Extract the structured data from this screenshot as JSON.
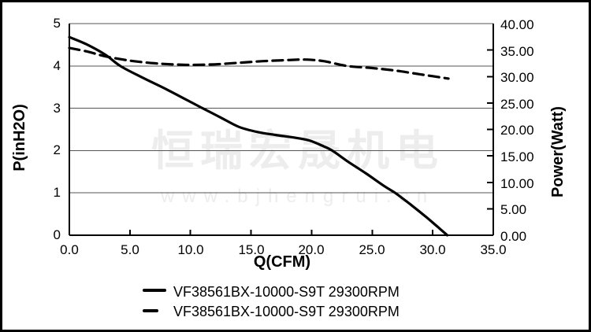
{
  "watermark": {
    "brand": "恒瑞宏晟机电",
    "url": "www.bjhengrui.cn"
  },
  "legend": [
    {
      "marker": "solid-line",
      "label": "VF38561BX-10000-S9T 29300RPM"
    },
    {
      "marker": "dashed-line",
      "label": "VF38561BX-10000-S9T 29300RPM"
    }
  ],
  "chart_data": {
    "type": "line",
    "title": "",
    "xlabel": "Q(CFM)",
    "ylabel_left": "P(inH2O)",
    "ylabel_right": "Power(Watt)",
    "grid": "horizontal-only",
    "legend_position": "bottom",
    "x_axis": {
      "min": 0,
      "max": 35,
      "ticks": [
        "0.0",
        "5.0",
        "10.0",
        "15.0",
        "20.0",
        "25.0",
        "30.0",
        "35.0"
      ]
    },
    "left_axis": {
      "min": 0,
      "max": 5,
      "ticks": [
        "5",
        "4",
        "3",
        "2",
        "1",
        "0"
      ]
    },
    "right_axis": {
      "min": 0,
      "max": 40,
      "ticks": [
        "40.00",
        "35.00",
        "30.00",
        "25.00",
        "20.00",
        "15.00",
        "10.00",
        "5.00",
        "0.00"
      ]
    },
    "series": [
      {
        "name": "VF38561BX-10000-S9T 29300RPM",
        "style": "solid",
        "axis": "left",
        "unit": "inH2O",
        "points": [
          [
            0,
            4.68
          ],
          [
            1.5,
            4.5
          ],
          [
            3,
            4.26
          ],
          [
            4.2,
            4.0
          ],
          [
            6,
            3.73
          ],
          [
            8,
            3.45
          ],
          [
            10,
            3.15
          ],
          [
            11,
            3.0
          ],
          [
            12.5,
            2.78
          ],
          [
            14,
            2.56
          ],
          [
            15.5,
            2.44
          ],
          [
            17,
            2.37
          ],
          [
            18.5,
            2.31
          ],
          [
            19.8,
            2.24
          ],
          [
            21,
            2.1
          ],
          [
            21.7,
            2.0
          ],
          [
            23,
            1.74
          ],
          [
            24.5,
            1.46
          ],
          [
            26,
            1.16
          ],
          [
            26.9,
            1.0
          ],
          [
            28.2,
            0.72
          ],
          [
            29.5,
            0.42
          ],
          [
            30.4,
            0.2
          ],
          [
            31.2,
            0
          ]
        ]
      },
      {
        "name": "VF38561BX-10000-S9T 29300RPM",
        "style": "dashed",
        "axis": "right",
        "unit": "Watt",
        "points": [
          [
            0,
            35.4
          ],
          [
            1.5,
            34.7
          ],
          [
            3,
            33.8
          ],
          [
            5,
            33.0
          ],
          [
            7,
            32.5
          ],
          [
            8.5,
            32.3
          ],
          [
            10,
            32.2
          ],
          [
            12,
            32.3
          ],
          [
            14,
            32.6
          ],
          [
            16,
            32.9
          ],
          [
            18,
            33.1
          ],
          [
            19.5,
            33.2
          ],
          [
            21,
            32.9
          ],
          [
            22.9,
            32.0
          ],
          [
            25,
            31.6
          ],
          [
            27,
            31.1
          ],
          [
            29,
            30.4
          ],
          [
            31.3,
            29.6
          ]
        ]
      }
    ],
    "colors": {
      "curve": "#000000",
      "grid": "#555555",
      "axis": "#000000",
      "watermark": "#ededed",
      "background": "#ffffff"
    }
  }
}
